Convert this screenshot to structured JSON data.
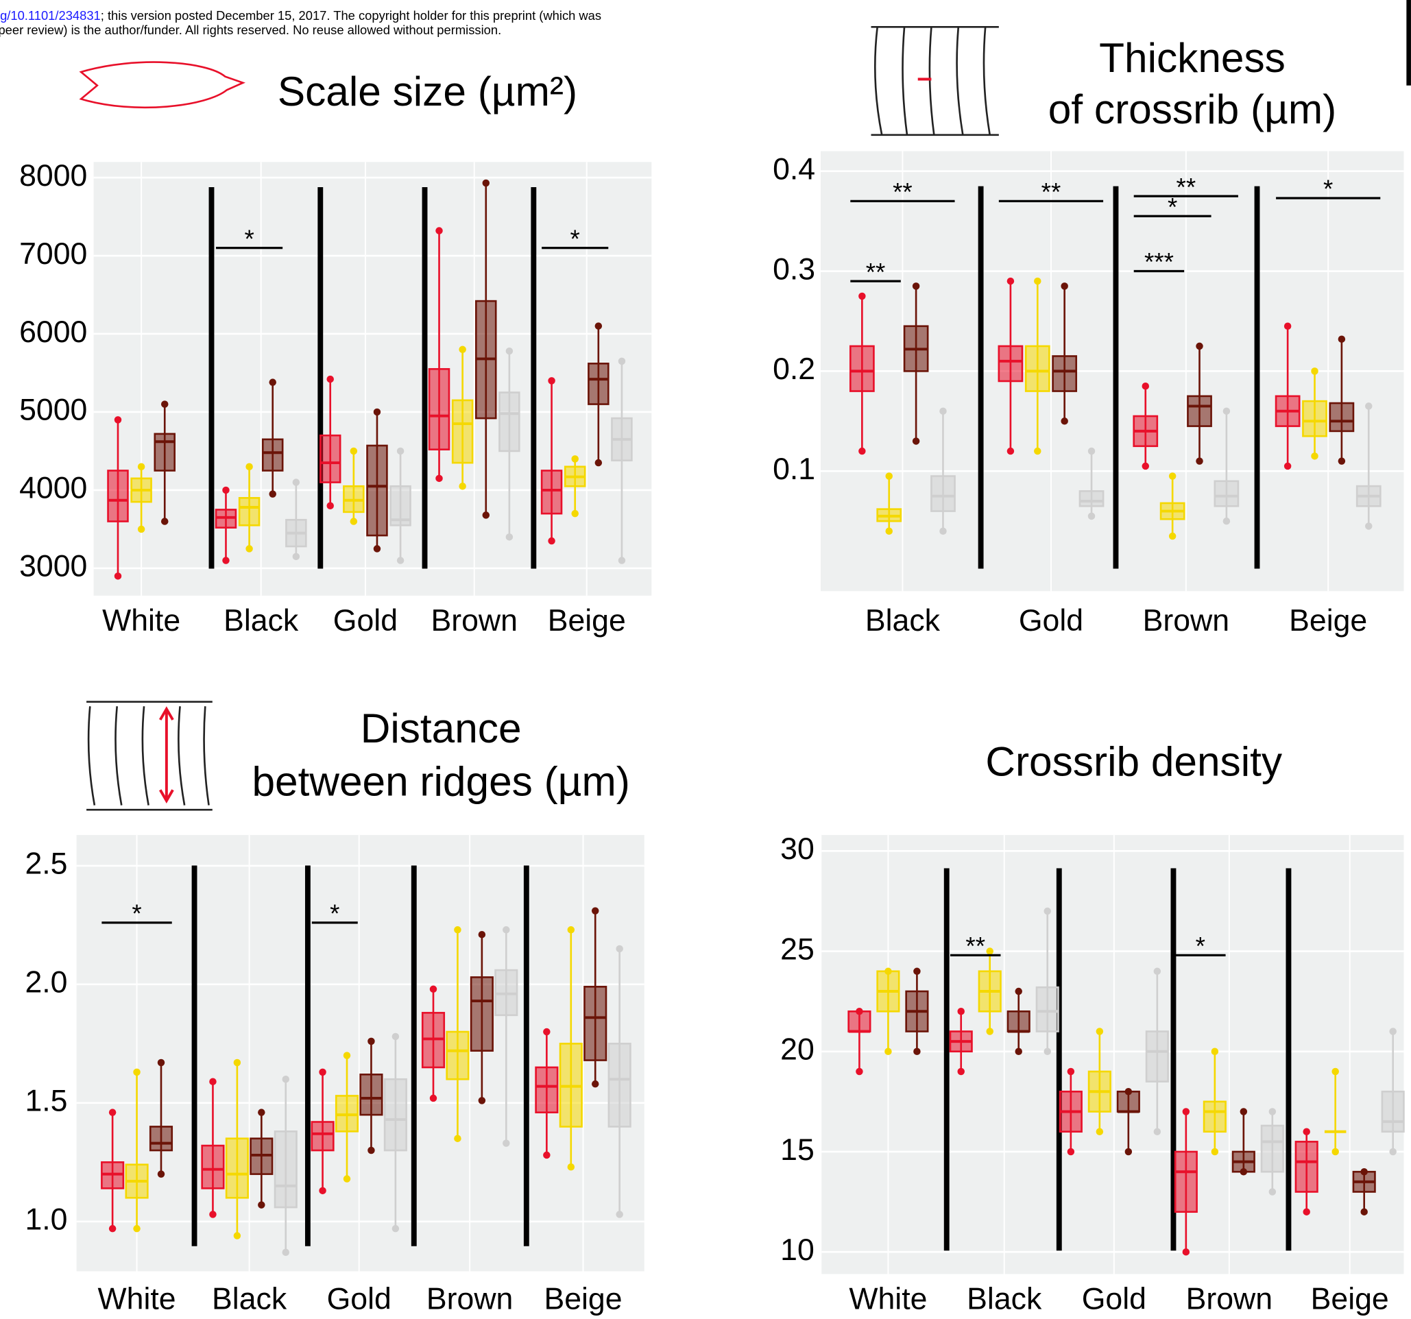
{
  "header": {
    "doi": "g/10.1101/234831",
    "line1": "; this version posted December 15, 2017. The copyright holder for this preprint (which was",
    "line2": "peer review) is the author/funder. All rights reserved. No reuse allowed without permission."
  },
  "chart_data": [
    {
      "type": "box",
      "title": [
        "Scale size (µm²)"
      ],
      "categories": [
        "White",
        "Black",
        "Gold",
        "Brown",
        "Beige"
      ],
      "ylim": [
        2650,
        8200
      ],
      "yticks": [
        3000,
        4000,
        5000,
        6000,
        7000,
        8000
      ],
      "grid": true,
      "series": [
        {
          "color": "#e8102a",
          "values": [
            [
              2900,
              3600,
              3870,
              4250,
              4900
            ],
            [
              3100,
              3520,
              3650,
              3750,
              4000
            ],
            [
              3800,
              4100,
              4350,
              4700,
              5420
            ],
            [
              4150,
              4520,
              4950,
              5550,
              7320
            ],
            [
              3350,
              3700,
              4000,
              4250,
              5400
            ]
          ]
        },
        {
          "color": "#f5d800",
          "values": [
            [
              3500,
              3850,
              4000,
              4150,
              4300
            ],
            [
              3250,
              3550,
              3780,
              3900,
              4300
            ],
            [
              3600,
              3720,
              3870,
              4050,
              4500
            ],
            [
              4050,
              4350,
              4850,
              5150,
              5800
            ],
            [
              3700,
              4050,
              4170,
              4300,
              4400
            ]
          ]
        },
        {
          "color": "#6b1408",
          "values": [
            [
              3600,
              4250,
              4620,
              4720,
              5100
            ],
            [
              3950,
              4250,
              4480,
              4650,
              5380
            ],
            [
              3250,
              3420,
              4050,
              4570,
              5000
            ],
            [
              3680,
              4920,
              5680,
              6420,
              7930
            ],
            [
              4350,
              5100,
              5420,
              5620,
              6100
            ]
          ]
        },
        {
          "color": "#cfcfcf",
          "values": [
            null,
            [
              3150,
              3280,
              3450,
              3620,
              4100
            ],
            [
              3100,
              3550,
              3620,
              4050,
              4500
            ],
            [
              3400,
              4500,
              4980,
              5250,
              5780
            ],
            [
              3100,
              4380,
              4650,
              4920,
              5650
            ]
          ]
        }
      ],
      "annotations": [
        {
          "text": "*",
          "y": 7100
        },
        {
          "text": "*",
          "y": 7100
        }
      ]
    },
    {
      "type": "box",
      "title": [
        "Thickness",
        "of crossrib (µm)"
      ],
      "categories": [
        "Black",
        "Gold",
        "Brown",
        "Beige"
      ],
      "ylim": [
        -0.02,
        0.42
      ],
      "yticks": [
        0.1,
        0.2,
        0.3,
        0.4
      ],
      "grid": true,
      "series": [
        {
          "color": "#e8102a",
          "values": [
            [
              0.12,
              0.18,
              0.2,
              0.225,
              0.275
            ],
            [
              0.12,
              0.19,
              0.21,
              0.225,
              0.29
            ],
            [
              0.105,
              0.125,
              0.14,
              0.155,
              0.185
            ],
            [
              0.105,
              0.145,
              0.16,
              0.175,
              0.245
            ]
          ]
        },
        {
          "color": "#f5d800",
          "values": [
            [
              0.04,
              0.05,
              0.055,
              0.062,
              0.095
            ],
            [
              0.12,
              0.18,
              0.2,
              0.225,
              0.29
            ],
            [
              0.035,
              0.052,
              0.06,
              0.068,
              0.095
            ],
            [
              0.115,
              0.135,
              0.15,
              0.17,
              0.2
            ]
          ]
        },
        {
          "color": "#6b1408",
          "values": [
            [
              0.13,
              0.2,
              0.222,
              0.245,
              0.285
            ],
            [
              0.15,
              0.18,
              0.2,
              0.215,
              0.285
            ],
            [
              0.11,
              0.145,
              0.165,
              0.175,
              0.225
            ],
            [
              0.11,
              0.14,
              0.15,
              0.168,
              0.232
            ]
          ]
        },
        {
          "color": "#cfcfcf",
          "values": [
            [
              0.04,
              0.06,
              0.075,
              0.095,
              0.16
            ],
            [
              0.055,
              0.065,
              0.07,
              0.08,
              0.12
            ],
            [
              0.05,
              0.065,
              0.075,
              0.09,
              0.16
            ],
            [
              0.045,
              0.065,
              0.075,
              0.085,
              0.165
            ]
          ]
        }
      ],
      "annotations": [
        {
          "text": "**",
          "y": 0.37
        },
        {
          "text": "**",
          "y": 0.29
        },
        {
          "text": "**",
          "y": 0.37
        },
        {
          "text": "**",
          "y": 0.375
        },
        {
          "text": "*",
          "y": 0.355
        },
        {
          "text": "***",
          "y": 0.3
        },
        {
          "text": "*",
          "y": 0.373
        }
      ]
    },
    {
      "type": "box",
      "title": [
        "Distance",
        "between ridges (µm)"
      ],
      "categories": [
        "White",
        "Black",
        "Gold",
        "Brown",
        "Beige"
      ],
      "ylim": [
        0.79,
        2.63
      ],
      "yticks": [
        {
          "value": 1,
          "label": "1.0"
        },
        1.5,
        {
          "value": 2,
          "label": "2.0"
        },
        2.5
      ],
      "grid": true,
      "series": [
        {
          "color": "#e8102a",
          "values": [
            [
              0.97,
              1.14,
              1.2,
              1.25,
              1.46
            ],
            [
              1.03,
              1.14,
              1.22,
              1.32,
              1.59
            ],
            [
              1.13,
              1.3,
              1.37,
              1.42,
              1.63
            ],
            [
              1.52,
              1.65,
              1.77,
              1.88,
              1.98
            ],
            [
              1.28,
              1.46,
              1.57,
              1.65,
              1.8
            ]
          ]
        },
        {
          "color": "#f5d800",
          "values": [
            [
              0.97,
              1.1,
              1.17,
              1.24,
              1.63
            ],
            [
              0.94,
              1.1,
              1.2,
              1.35,
              1.67
            ],
            [
              1.18,
              1.38,
              1.45,
              1.53,
              1.7
            ],
            [
              1.35,
              1.6,
              1.72,
              1.8,
              2.23
            ],
            [
              1.23,
              1.4,
              1.57,
              1.75,
              2.23
            ]
          ]
        },
        {
          "color": "#6b1408",
          "values": [
            [
              1.2,
              1.3,
              1.33,
              1.4,
              1.67
            ],
            [
              1.07,
              1.2,
              1.28,
              1.35,
              1.46
            ],
            [
              1.3,
              1.45,
              1.52,
              1.62,
              1.76
            ],
            [
              1.51,
              1.72,
              1.93,
              2.03,
              2.21
            ],
            [
              1.58,
              1.68,
              1.86,
              1.99,
              2.31
            ]
          ]
        },
        {
          "color": "#cfcfcf",
          "values": [
            null,
            [
              0.87,
              1.06,
              1.15,
              1.38,
              1.6
            ],
            [
              0.97,
              1.3,
              1.43,
              1.6,
              1.78
            ],
            [
              1.33,
              1.87,
              1.96,
              2.06,
              2.23
            ],
            [
              1.03,
              1.4,
              1.6,
              1.75,
              2.15
            ]
          ]
        }
      ],
      "annotations": [
        {
          "text": "*",
          "y": 2.26
        },
        {
          "text": "*",
          "y": 2.26
        }
      ]
    },
    {
      "type": "box",
      "title": [
        "Crossrib density"
      ],
      "categories": [
        "White",
        "Black",
        "Gold",
        "Brown",
        "Beige"
      ],
      "ylim": [
        8.9,
        30.8
      ],
      "yticks": [
        10,
        15,
        20,
        25,
        30
      ],
      "grid": true,
      "series": [
        {
          "color": "#e8102a",
          "values": [
            [
              19,
              21,
              21,
              22,
              22
            ],
            [
              19,
              20,
              20.5,
              21,
              22
            ],
            [
              15,
              16,
              17,
              18,
              19
            ],
            [
              10,
              12,
              14,
              15,
              17
            ],
            [
              12,
              13,
              14.5,
              15.5,
              16
            ]
          ]
        },
        {
          "color": "#f5d800",
          "values": [
            [
              20,
              22,
              23,
              24,
              24
            ],
            [
              21,
              22,
              23,
              24,
              25
            ],
            [
              16,
              17,
              18,
              19,
              21
            ],
            [
              15,
              16,
              17,
              17.5,
              20
            ],
            [
              15,
              16,
              16,
              16,
              19
            ]
          ]
        },
        {
          "color": "#6b1408",
          "values": [
            [
              20,
              21,
              22,
              23,
              24
            ],
            [
              20,
              21,
              21,
              22,
              23
            ],
            [
              15,
              17,
              17,
              18,
              18
            ],
            [
              14,
              14,
              14.5,
              15,
              17
            ],
            [
              12,
              13,
              13.5,
              14,
              14
            ]
          ]
        },
        {
          "color": "#cfcfcf",
          "values": [
            null,
            [
              20,
              21,
              22,
              23.2,
              27
            ],
            [
              16,
              18.5,
              20,
              21,
              24
            ],
            [
              13,
              14,
              15.5,
              16.3,
              17
            ],
            [
              15,
              16,
              16.5,
              18,
              21
            ]
          ]
        }
      ],
      "annotations": [
        {
          "text": "**",
          "y": 24.8
        },
        {
          "text": "*",
          "y": 24.8
        }
      ]
    }
  ]
}
